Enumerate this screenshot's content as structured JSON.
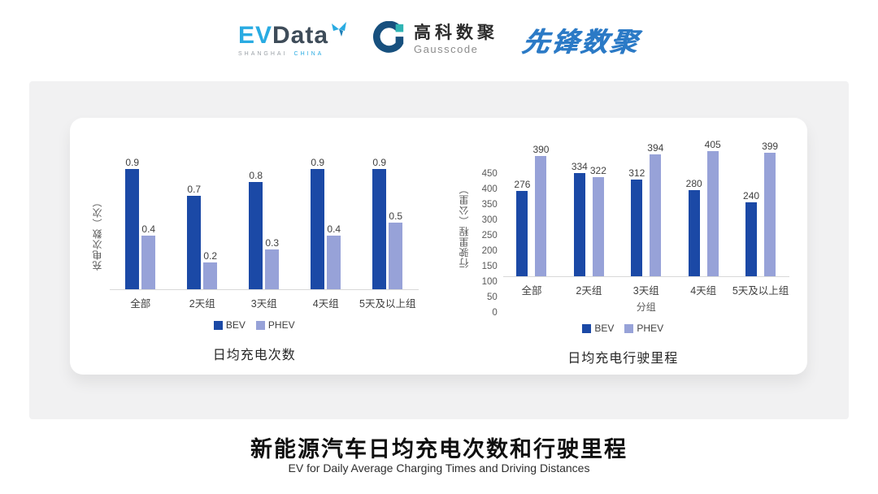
{
  "header": {
    "evdata": {
      "ev": "EV",
      "data": "Data",
      "sub_left": "SHANGHAI",
      "sub_right": "CHINA"
    },
    "gausscode": {
      "cn": "高科数聚",
      "en": "Gausscode"
    },
    "pioneer": {
      "text": "先锋数聚"
    }
  },
  "chart_data": [
    {
      "type": "bar",
      "title": "日均充电次数",
      "categories": [
        "全部",
        "2天组",
        "3天组",
        "4天组",
        "5天及以上组"
      ],
      "series": [
        {
          "name": "BEV",
          "values": [
            0.9,
            0.7,
            0.8,
            0.9,
            0.9
          ],
          "color": "#1B49A6"
        },
        {
          "name": "PHEV",
          "values": [
            0.4,
            0.2,
            0.3,
            0.4,
            0.5
          ],
          "color": "#97A2D8"
        }
      ],
      "xlabel": "",
      "ylabel": "充电次数（次）",
      "ylim": [
        0,
        1.0
      ],
      "yticks": [],
      "y_axis_visible": false,
      "grid": false,
      "data_labels": true,
      "legend_position": "bottom"
    },
    {
      "type": "bar",
      "title": "日均充电行驶里程",
      "categories": [
        "全部",
        "2天组",
        "3天组",
        "4天组",
        "5天及以上组"
      ],
      "series": [
        {
          "name": "BEV",
          "values": [
            276,
            334,
            312,
            280,
            240
          ],
          "color": "#1B49A6"
        },
        {
          "name": "PHEV",
          "values": [
            390,
            322,
            394,
            405,
            399
          ],
          "color": "#97A2D8"
        }
      ],
      "xlabel": "分组",
      "ylabel": "行驶里程（公里）",
      "ylim": [
        0,
        450
      ],
      "yticks": [
        0,
        50,
        100,
        150,
        200,
        250,
        300,
        350,
        400,
        450
      ],
      "y_axis_visible": true,
      "grid": false,
      "data_labels": true,
      "legend_position": "bottom"
    }
  ],
  "footer": {
    "title": "新能源汽车日均充电次数和行驶里程",
    "subtitle": "EV for Daily Average Charging Times and Driving Distances"
  },
  "colors": {
    "bev": "#1B49A6",
    "phev": "#97A2D8",
    "panel_bg": "#F1F1F2",
    "card_bg": "#FFFFFF",
    "axis_line": "#D9D9D9",
    "tick_text": "#595959",
    "label_text": "#404040",
    "evdata_blue": "#29ABE2",
    "evdata_dark": "#3E4C59",
    "gauss_navy": "#17507E",
    "gauss_teal": "#2FB4B4",
    "pioneer_blue": "#2B7AC6"
  }
}
